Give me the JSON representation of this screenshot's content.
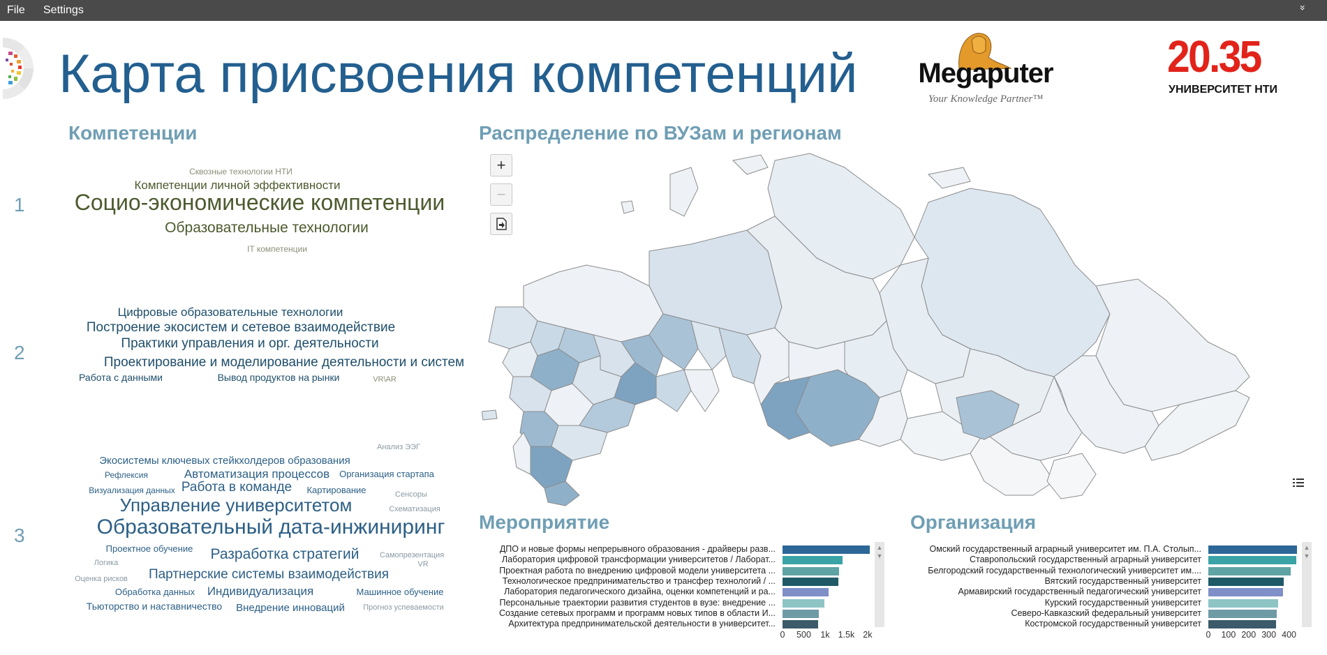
{
  "menubar": {
    "file": "File",
    "settings": "Settings",
    "chevron": "»"
  },
  "header": {
    "title": "Карта присвоения компетенций",
    "megaputer_name": "Megaputer",
    "megaputer_tagline": "Your Knowledge Partner™",
    "nti_number": "20.35",
    "nti_caption": "УНИВЕРСИТЕТ НТИ"
  },
  "competencies": {
    "title": "Компетенции",
    "rows": [
      {
        "num": "1",
        "words": [
          {
            "text": "Сквозные технологии НТИ",
            "size": 12,
            "color": "#8b8e76"
          },
          {
            "text": "Компетенции личной эффективности",
            "size": 17,
            "color": "#4c5a2e"
          },
          {
            "text": "Социо-экономические компетенции",
            "size": 32,
            "color": "#4c5a2e"
          },
          {
            "text": "Образовательные технологии",
            "size": 21,
            "color": "#4c5a2e"
          },
          {
            "text": "IT компетенции",
            "size": 12,
            "color": "#8b8e76"
          }
        ]
      },
      {
        "num": "2",
        "words": [
          {
            "text": "Цифровые образовательные технологии",
            "size": 17,
            "color": "#1e4e6a"
          },
          {
            "text": "Построение экосистем и сетевое взаимодействие",
            "size": 19,
            "color": "#1e4e6a"
          },
          {
            "text": "Практики управления и орг. деятельности",
            "size": 19,
            "color": "#1e4e6a"
          },
          {
            "text": "Проектирование и моделирование деятельности и систем",
            "size": 19,
            "color": "#1e4e6a"
          },
          {
            "text": "Работа с данными",
            "size": 14,
            "color": "#1e4e6a"
          },
          {
            "text": "Вывод продуктов на рынки",
            "size": 14,
            "color": "#1e4e6a"
          },
          {
            "text": "VR\\AR",
            "size": 11,
            "color": "#8b8e76"
          }
        ]
      },
      {
        "num": "3",
        "words": [
          {
            "text": "Анализ ЭЭГ",
            "size": 11,
            "color": "#8a9aa4"
          },
          {
            "text": "Экосистемы ключевых стейкхолдеров образования",
            "size": 15,
            "color": "#2c5f85"
          },
          {
            "text": "Рефлексия",
            "size": 12,
            "color": "#2c5f85"
          },
          {
            "text": "Автоматизация процессов",
            "size": 17,
            "color": "#2c5f85"
          },
          {
            "text": "Организация стартапа",
            "size": 13,
            "color": "#2c5f85"
          },
          {
            "text": "Визуализация данных",
            "size": 12,
            "color": "#2c5f85"
          },
          {
            "text": "Работа в команде",
            "size": 19,
            "color": "#2c5f85"
          },
          {
            "text": "Картирование",
            "size": 13,
            "color": "#2c5f85"
          },
          {
            "text": "Сенсоры",
            "size": 11,
            "color": "#8a9aa4"
          },
          {
            "text": "Управление университетом",
            "size": 26,
            "color": "#2c5f85"
          },
          {
            "text": "Схематизация",
            "size": 11,
            "color": "#8a9aa4"
          },
          {
            "text": "Образовательный дата-инжиниринг",
            "size": 30,
            "color": "#2c5f85"
          },
          {
            "text": "Проектное обучение",
            "size": 13,
            "color": "#2c5f85"
          },
          {
            "text": "Разработка стратегий",
            "size": 21,
            "color": "#2c5f85"
          },
          {
            "text": "Самопрезентация",
            "size": 11,
            "color": "#8a9aa4"
          },
          {
            "text": "Логика",
            "size": 11,
            "color": "#8a9aa4"
          },
          {
            "text": "VR",
            "size": 11,
            "color": "#8a9aa4"
          },
          {
            "text": "Партнерские системы взаимодействия",
            "size": 19,
            "color": "#2c5f85"
          },
          {
            "text": "Оценка рисков",
            "size": 11,
            "color": "#8a9aa4"
          },
          {
            "text": "Обработка данных",
            "size": 13,
            "color": "#2c5f85"
          },
          {
            "text": "Индивидуализация",
            "size": 17,
            "color": "#2c5f85"
          },
          {
            "text": "Машинное обучение",
            "size": 13,
            "color": "#2c5f85"
          },
          {
            "text": "Тьюторство и наставничество",
            "size": 14,
            "color": "#2c5f85"
          },
          {
            "text": "Внедрение инноваций",
            "size": 15,
            "color": "#2c5f85"
          },
          {
            "text": "Прогноз успеваемости",
            "size": 11,
            "color": "#8a9aa4"
          }
        ]
      }
    ]
  },
  "map": {
    "title": "Распределение по ВУЗам и регионам",
    "zoom_in": "+",
    "zoom_out": "−",
    "export_icon": "export-icon",
    "layers_icon": "list-icon"
  },
  "events": {
    "title": "Мероприятие",
    "ticks": [
      "0",
      "500",
      "1k",
      "1.5k",
      "2k"
    ],
    "axis_max": 2200,
    "items": [
      {
        "label": "ДПО и новые формы непрерывного образования - драйверы разв...",
        "value": 2150,
        "color": "#2c6797"
      },
      {
        "label": "Лаборатория цифровой трансформации университетов / Лаборат...",
        "value": 1480,
        "color": "#3aa3a6"
      },
      {
        "label": "Проектная работа по внедрению цифровой модели университета ...",
        "value": 1400,
        "color": "#5fa3a5"
      },
      {
        "label": "Технологическое предпринимательство и трансфер технологий / ...",
        "value": 1380,
        "color": "#1f5a66"
      },
      {
        "label": "Лаборатория педагогического дизайна, оценки компетенций и ра...",
        "value": 1130,
        "color": "#7f8fc7"
      },
      {
        "label": "Персональные траектории развития студентов в вузе: внедрение ...",
        "value": 1030,
        "color": "#8ec4c4"
      },
      {
        "label": "Создание сетевых программ и программ новых типов в области И...",
        "value": 900,
        "color": "#6e9aa6"
      },
      {
        "label": "Архитектура предпринимательской деятельности в университет...",
        "value": 870,
        "color": "#3b5a6a"
      }
    ]
  },
  "organizations": {
    "title": "Организация",
    "ticks": [
      "0",
      "100",
      "200",
      "300",
      "400"
    ],
    "axis_max": 450,
    "items": [
      {
        "label": "Омский государственный аграрный университет им. П.А. Столып...",
        "value": 440,
        "color": "#2c6797"
      },
      {
        "label": "Ставропольский государственный аграрный университет",
        "value": 435,
        "color": "#3aa3a6"
      },
      {
        "label": "Белгородский государственный технологический университет им....",
        "value": 410,
        "color": "#5fa3a5"
      },
      {
        "label": "Вятский государственный университет",
        "value": 375,
        "color": "#1f5a66"
      },
      {
        "label": "Армавирский государственный педагогический университет",
        "value": 370,
        "color": "#7f8fc7"
      },
      {
        "label": "Курский государственный университет",
        "value": 345,
        "color": "#8ec4c4"
      },
      {
        "label": "Северо-Кавказский федеральный университет",
        "value": 340,
        "color": "#6e9aa6"
      },
      {
        "label": "Костромской государственный университет",
        "value": 335,
        "color": "#3b5a6a"
      }
    ]
  }
}
